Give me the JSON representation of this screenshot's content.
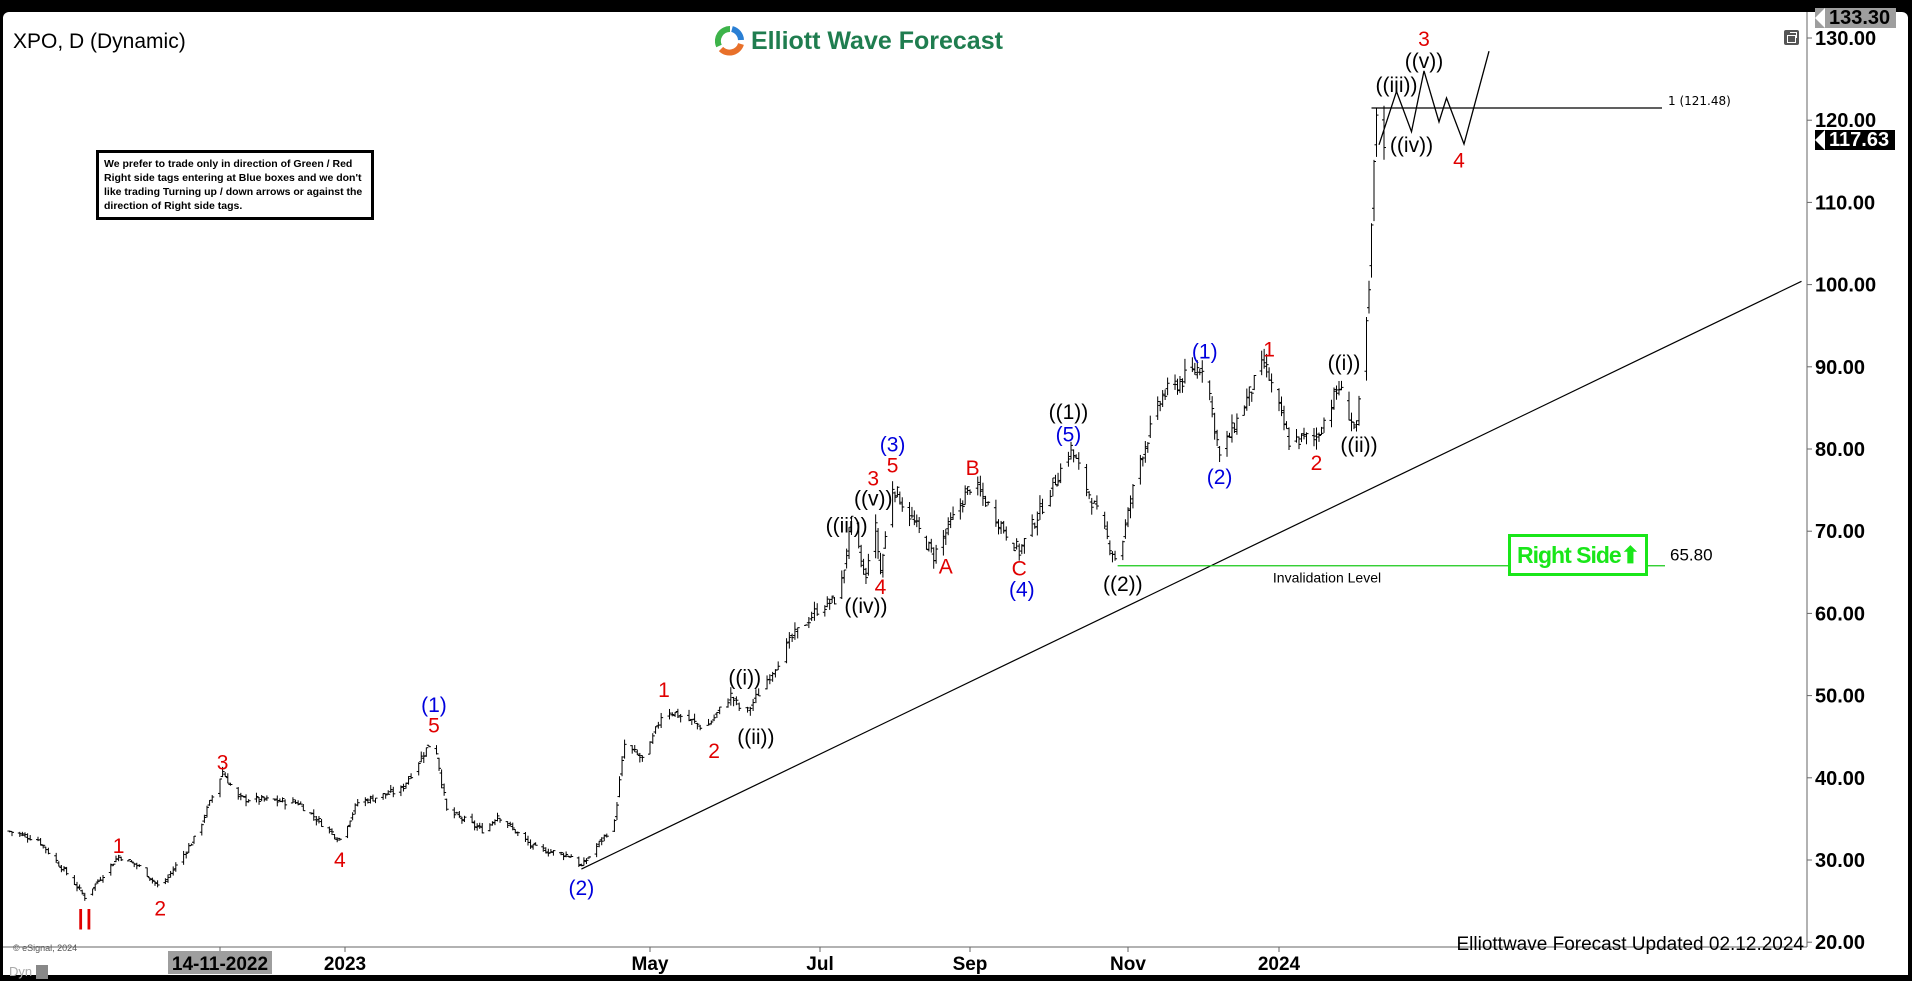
{
  "header": {
    "title": "XPO, D (Dynamic)",
    "logo_text": "Elliott Wave Forecast"
  },
  "note": "We prefer to trade only in direction of Green / Red Right side tags entering at Blue boxes and we don't like trading Turning up / down arrows or against the direction of Right side tags.",
  "right_side_tag": {
    "label": "Right Side",
    "direction": "up",
    "color": "#19e619"
  },
  "footer": {
    "updated": "Elliottwave Forecast Updated 02.12.2024",
    "copyright": "© eSignal, 2024",
    "dyn": "Dyn"
  },
  "badges": {
    "top_price": "133.30",
    "last_price": "117.63"
  },
  "icons": {
    "restore": "restore-window-icon",
    "dyn": "lock-icon",
    "right_side": "arrow-up-icon"
  },
  "chart_data": {
    "type": "ohlc",
    "symbol": "XPO",
    "interval": "D",
    "ylim": [
      20,
      133.3
    ],
    "y_ticks": [
      "20.00",
      "30.00",
      "40.00",
      "50.00",
      "60.00",
      "70.00",
      "80.00",
      "90.00",
      "100.00",
      "110.00",
      "120.00",
      "130.00"
    ],
    "x_ticks": [
      {
        "label": "14-11-2022",
        "date": "2022-11-14",
        "highlight": true
      },
      {
        "label": "2023",
        "date": "2023-01-01"
      },
      {
        "label": "May",
        "date": "2023-05-01"
      },
      {
        "label": "Jul",
        "date": "2023-07-01"
      },
      {
        "label": "Sep",
        "date": "2023-09-01"
      },
      {
        "label": "Nov",
        "date": "2023-11-01"
      },
      {
        "label": "2024",
        "date": "2024-01-01"
      }
    ],
    "price_path": [
      [
        "2022-08-25",
        33.5
      ],
      [
        "2022-09-05",
        32.5
      ],
      [
        "2022-09-17",
        28
      ],
      [
        "2022-09-23",
        25.5
      ],
      [
        "2022-10-06",
        30.5
      ],
      [
        "2022-10-15",
        29
      ],
      [
        "2022-10-22",
        26.5
      ],
      [
        "2022-11-05",
        33
      ],
      [
        "2022-11-15",
        40.8
      ],
      [
        "2022-11-21",
        37.5
      ],
      [
        "2022-12-14",
        37
      ],
      [
        "2022-12-30",
        32.5
      ],
      [
        "2023-01-06",
        37
      ],
      [
        "2023-01-23",
        38.5
      ],
      [
        "2023-02-05",
        45
      ],
      [
        "2023-02-10",
        36
      ],
      [
        "2023-02-25",
        33.5
      ],
      [
        "2023-03-02",
        35.5
      ],
      [
        "2023-03-16",
        31.5
      ],
      [
        "2023-03-31",
        30.5
      ],
      [
        "2023-04-04",
        29.2
      ],
      [
        "2023-04-17",
        34.5
      ],
      [
        "2023-04-19",
        39.5
      ],
      [
        "2023-04-21",
        44
      ],
      [
        "2023-04-29",
        42
      ],
      [
        "2023-05-06",
        48.5
      ],
      [
        "2023-05-21",
        46
      ],
      [
        "2023-05-30",
        50
      ],
      [
        "2023-06-04",
        47.5
      ],
      [
        "2023-06-21",
        57
      ],
      [
        "2023-06-30",
        60.5
      ],
      [
        "2023-07-09",
        62
      ],
      [
        "2023-07-14",
        71
      ],
      [
        "2023-07-20",
        64
      ],
      [
        "2023-07-23",
        73
      ],
      [
        "2023-07-26",
        65
      ],
      [
        "2023-07-31",
        75.5
      ],
      [
        "2023-08-17",
        67
      ],
      [
        "2023-09-02",
        76
      ],
      [
        "2023-09-20",
        67.5
      ],
      [
        "2023-10-10",
        80
      ],
      [
        "2023-10-28",
        66
      ],
      [
        "2023-11-05",
        78
      ],
      [
        "2023-11-15",
        86.5
      ],
      [
        "2023-12-02",
        90.5
      ],
      [
        "2023-12-08",
        79
      ],
      [
        "2023-12-26",
        90.5
      ],
      [
        "2024-01-05",
        81
      ],
      [
        "2024-01-16",
        81.5
      ],
      [
        "2024-01-25",
        87.5
      ],
      [
        "2024-02-01",
        82
      ],
      [
        "2024-02-06",
        98.5
      ],
      [
        "2024-02-07",
        107
      ],
      [
        "2024-02-09",
        121
      ],
      [
        "2024-02-12",
        117.63
      ]
    ],
    "projection_path": [
      [
        "2024-02-10",
        117
      ],
      [
        "2024-02-17",
        123.5
      ],
      [
        "2024-02-23",
        118.6
      ],
      [
        "2024-02-28",
        126
      ],
      [
        "2024-03-05",
        119.8
      ],
      [
        "2024-03-08",
        122.7
      ],
      [
        "2024-03-15",
        117.1
      ],
      [
        "2024-03-25",
        128.4
      ]
    ],
    "trendline": [
      [
        "2023-04-04",
        28.9
      ],
      [
        "2024-07-28",
        100.4
      ]
    ],
    "fib_level": {
      "label": "1 (121.48)",
      "value": 121.48,
      "from": "2024-02-07",
      "to": "2024-05-10"
    },
    "invalidation": {
      "label": "Invalidation Level",
      "value_label": "65.80",
      "value": 65.8,
      "from": "2023-10-28",
      "to": "2024-05-10",
      "color": "#19c919"
    },
    "wave_labels": [
      {
        "t": "II",
        "d": "2022-09-23",
        "p": 23.0,
        "c": "red"
      },
      {
        "t": "1",
        "d": "2022-10-06",
        "p": 31.8,
        "c": "red"
      },
      {
        "t": "2",
        "d": "2022-10-22",
        "p": 24.2,
        "c": "red"
      },
      {
        "t": "3",
        "d": "2022-11-15",
        "p": 42.0,
        "c": "red"
      },
      {
        "t": "4",
        "d": "2022-12-30",
        "p": 30.1,
        "c": "red"
      },
      {
        "t": "5",
        "d": "2023-02-05",
        "p": 46.5,
        "c": "red"
      },
      {
        "t": "(1)",
        "d": "2023-02-05",
        "p": 49.0,
        "c": "blue"
      },
      {
        "t": "(2)",
        "d": "2023-04-04",
        "p": 26.7,
        "c": "blue"
      },
      {
        "t": "1",
        "d": "2023-05-06",
        "p": 50.8,
        "c": "red"
      },
      {
        "t": "2",
        "d": "2023-05-24",
        "p": 43.4,
        "c": "red"
      },
      {
        "t": "((i))",
        "d": "2023-06-04",
        "p": 52.3,
        "c": "black"
      },
      {
        "t": "((ii))",
        "d": "2023-06-08",
        "p": 45.1,
        "c": "black"
      },
      {
        "t": "((iii))",
        "d": "2023-07-12",
        "p": 70.8,
        "c": "black"
      },
      {
        "t": "((iv))",
        "d": "2023-07-20",
        "p": 61.0,
        "c": "black"
      },
      {
        "t": "((v))",
        "d": "2023-07-23",
        "p": 74.1,
        "c": "black"
      },
      {
        "t": "3",
        "d": "2023-07-23",
        "p": 76.3,
        "c": "red"
      },
      {
        "t": "4",
        "d": "2023-07-26",
        "p": 63.1,
        "c": "red"
      },
      {
        "t": "5",
        "d": "2023-07-31",
        "p": 78.1,
        "c": "red"
      },
      {
        "t": "(3)",
        "d": "2023-07-31",
        "p": 80.4,
        "c": "blue"
      },
      {
        "t": "A",
        "d": "2023-08-22",
        "p": 65.8,
        "c": "red"
      },
      {
        "t": "B",
        "d": "2023-09-02",
        "p": 77.8,
        "c": "red"
      },
      {
        "t": "C",
        "d": "2023-09-20",
        "p": 65.6,
        "c": "red"
      },
      {
        "t": "(4)",
        "d": "2023-09-21",
        "p": 63.0,
        "c": "blue"
      },
      {
        "t": "((1))",
        "d": "2023-10-09",
        "p": 84.6,
        "c": "black"
      },
      {
        "t": "(5)",
        "d": "2023-10-09",
        "p": 81.9,
        "c": "blue"
      },
      {
        "t": "((2))",
        "d": "2023-10-30",
        "p": 63.7,
        "c": "black"
      },
      {
        "t": "(1)",
        "d": "2023-12-02",
        "p": 92.0,
        "c": "blue"
      },
      {
        "t": "(2)",
        "d": "2023-12-08",
        "p": 76.7,
        "c": "blue"
      },
      {
        "t": "1",
        "d": "2023-12-28",
        "p": 92.2,
        "c": "red"
      },
      {
        "t": "2",
        "d": "2024-01-16",
        "p": 78.4,
        "c": "red"
      },
      {
        "t": "((i))",
        "d": "2024-01-27",
        "p": 90.6,
        "c": "black"
      },
      {
        "t": "((ii))",
        "d": "2024-02-02",
        "p": 80.6,
        "c": "black"
      },
      {
        "t": "((iii))",
        "d": "2024-02-17",
        "p": 124.4,
        "c": "black"
      },
      {
        "t": "((iv))",
        "d": "2024-02-23",
        "p": 117.1,
        "c": "black"
      },
      {
        "t": "((v))",
        "d": "2024-02-28",
        "p": 127.3,
        "c": "black"
      },
      {
        "t": "3",
        "d": "2024-02-28",
        "p": 130.0,
        "c": "red"
      },
      {
        "t": "4",
        "d": "2024-03-13",
        "p": 115.2,
        "c": "red"
      }
    ],
    "colors": {
      "red": "#e00000",
      "blue": "#0000dd",
      "black": "#000000",
      "bars": "#000000"
    }
  }
}
